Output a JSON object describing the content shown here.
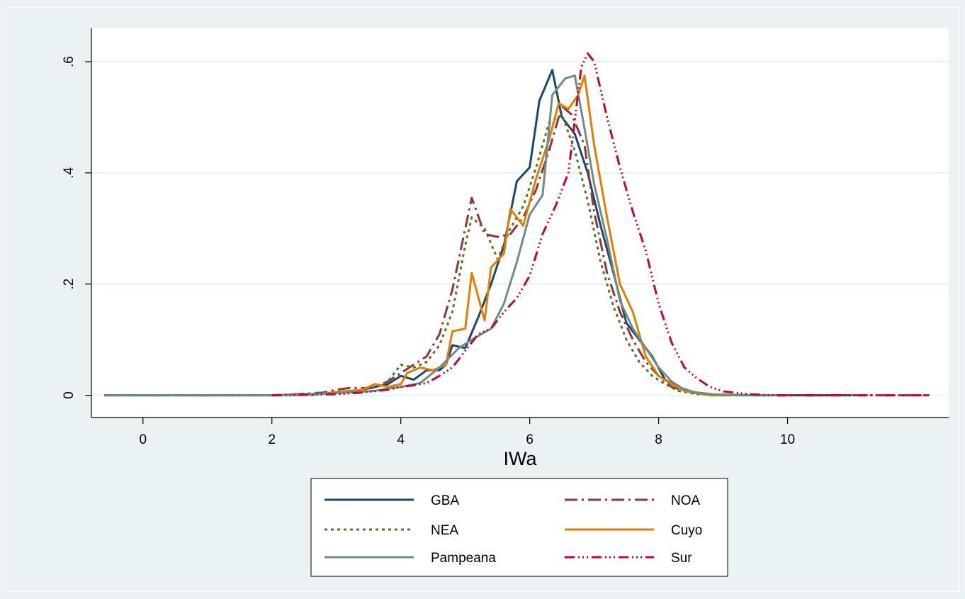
{
  "chart_data": {
    "type": "line",
    "title": "",
    "xlabel": "IWa",
    "ylabel": "",
    "xlim": [
      -0.8,
      12.5
    ],
    "ylim": [
      -0.04,
      0.66
    ],
    "x_ticks": [
      0,
      2,
      4,
      6,
      8,
      10
    ],
    "x_tick_labels": [
      "0",
      "2",
      "4",
      "6",
      "8",
      "10"
    ],
    "y_ticks": [
      0,
      0.2,
      0.4,
      0.6
    ],
    "y_tick_labels": [
      "0",
      ".2",
      ".4",
      ".6"
    ],
    "grid": "horizontal",
    "legend": "bottom",
    "series": [
      {
        "name": "GBA",
        "color": "#1a476f",
        "dash": "none",
        "points": [
          [
            -0.6,
            0
          ],
          [
            2.0,
            0
          ],
          [
            2.6,
            0.002
          ],
          [
            3.0,
            0.005
          ],
          [
            3.4,
            0.01
          ],
          [
            3.8,
            0.02
          ],
          [
            4.0,
            0.035
          ],
          [
            4.2,
            0.028
          ],
          [
            4.4,
            0.045
          ],
          [
            4.6,
            0.045
          ],
          [
            4.7,
            0.055
          ],
          [
            4.8,
            0.09
          ],
          [
            5.0,
            0.085
          ],
          [
            5.2,
            0.14
          ],
          [
            5.4,
            0.2
          ],
          [
            5.6,
            0.27
          ],
          [
            5.8,
            0.385
          ],
          [
            6.0,
            0.41
          ],
          [
            6.15,
            0.53
          ],
          [
            6.35,
            0.585
          ],
          [
            6.5,
            0.5
          ],
          [
            6.7,
            0.47
          ],
          [
            6.9,
            0.4
          ],
          [
            7.1,
            0.305
          ],
          [
            7.3,
            0.22
          ],
          [
            7.5,
            0.13
          ],
          [
            7.7,
            0.1
          ],
          [
            7.9,
            0.07
          ],
          [
            8.1,
            0.028
          ],
          [
            8.3,
            0.015
          ],
          [
            8.5,
            0.007
          ],
          [
            8.7,
            0.002
          ],
          [
            9.0,
            0.001
          ],
          [
            9.5,
            0
          ],
          [
            11.0,
            0
          ]
        ]
      },
      {
        "name": "NOA",
        "color": "#90353b",
        "dash": "18 6 3 6",
        "points": [
          [
            -0.6,
            0
          ],
          [
            2.0,
            0
          ],
          [
            2.4,
            0.002
          ],
          [
            2.8,
            0.005
          ],
          [
            3.0,
            0.01
          ],
          [
            3.2,
            0.013
          ],
          [
            3.6,
            0.013
          ],
          [
            3.8,
            0.025
          ],
          [
            4.0,
            0.04
          ],
          [
            4.2,
            0.055
          ],
          [
            4.4,
            0.07
          ],
          [
            4.6,
            0.11
          ],
          [
            4.8,
            0.19
          ],
          [
            5.0,
            0.3
          ],
          [
            5.1,
            0.355
          ],
          [
            5.3,
            0.29
          ],
          [
            5.5,
            0.285
          ],
          [
            5.7,
            0.29
          ],
          [
            5.9,
            0.32
          ],
          [
            6.1,
            0.37
          ],
          [
            6.3,
            0.44
          ],
          [
            6.5,
            0.52
          ],
          [
            6.65,
            0.505
          ],
          [
            6.85,
            0.45
          ],
          [
            7.0,
            0.33
          ],
          [
            7.2,
            0.22
          ],
          [
            7.4,
            0.15
          ],
          [
            7.6,
            0.1
          ],
          [
            7.8,
            0.06
          ],
          [
            8.0,
            0.035
          ],
          [
            8.2,
            0.015
          ],
          [
            8.5,
            0.005
          ],
          [
            8.8,
            0.001
          ],
          [
            9.0,
            0
          ],
          [
            12.2,
            0
          ]
        ]
      },
      {
        "name": "NEA",
        "color": "#55752f",
        "dash": "4 5",
        "points": [
          [
            -0.6,
            0
          ],
          [
            2.0,
            0
          ],
          [
            2.4,
            0.001
          ],
          [
            2.8,
            0.003
          ],
          [
            3.0,
            0.005
          ],
          [
            3.4,
            0.01
          ],
          [
            3.6,
            0.015
          ],
          [
            3.8,
            0.025
          ],
          [
            4.0,
            0.055
          ],
          [
            4.2,
            0.05
          ],
          [
            4.4,
            0.06
          ],
          [
            4.6,
            0.09
          ],
          [
            4.8,
            0.15
          ],
          [
            5.0,
            0.27
          ],
          [
            5.1,
            0.32
          ],
          [
            5.3,
            0.3
          ],
          [
            5.5,
            0.245
          ],
          [
            5.7,
            0.3
          ],
          [
            5.9,
            0.34
          ],
          [
            6.1,
            0.41
          ],
          [
            6.3,
            0.49
          ],
          [
            6.5,
            0.505
          ],
          [
            6.7,
            0.44
          ],
          [
            6.9,
            0.35
          ],
          [
            7.1,
            0.24
          ],
          [
            7.3,
            0.16
          ],
          [
            7.5,
            0.1
          ],
          [
            7.7,
            0.06
          ],
          [
            7.9,
            0.035
          ],
          [
            8.1,
            0.02
          ],
          [
            8.3,
            0.008
          ],
          [
            8.6,
            0.002
          ],
          [
            9.0,
            0
          ],
          [
            9.6,
            0
          ]
        ]
      },
      {
        "name": "Cuyo",
        "color": "#e37e00",
        "dash": "none",
        "points": [
          [
            2.6,
            0
          ],
          [
            3.0,
            0.006
          ],
          [
            3.4,
            0.01
          ],
          [
            3.6,
            0.02
          ],
          [
            3.8,
            0.015
          ],
          [
            4.0,
            0.02
          ],
          [
            4.1,
            0.04
          ],
          [
            4.3,
            0.05
          ],
          [
            4.5,
            0.045
          ],
          [
            4.7,
            0.055
          ],
          [
            4.8,
            0.115
          ],
          [
            5.0,
            0.12
          ],
          [
            5.1,
            0.22
          ],
          [
            5.3,
            0.135
          ],
          [
            5.4,
            0.23
          ],
          [
            5.6,
            0.255
          ],
          [
            5.7,
            0.335
          ],
          [
            5.9,
            0.305
          ],
          [
            6.1,
            0.39
          ],
          [
            6.3,
            0.46
          ],
          [
            6.45,
            0.525
          ],
          [
            6.6,
            0.515
          ],
          [
            6.75,
            0.54
          ],
          [
            6.85,
            0.575
          ],
          [
            7.0,
            0.45
          ],
          [
            7.2,
            0.32
          ],
          [
            7.4,
            0.2
          ],
          [
            7.6,
            0.15
          ],
          [
            7.8,
            0.07
          ],
          [
            8.0,
            0.035
          ],
          [
            8.2,
            0.02
          ],
          [
            8.4,
            0.008
          ],
          [
            8.6,
            0.004
          ],
          [
            8.8,
            0
          ],
          [
            9.1,
            0
          ]
        ]
      },
      {
        "name": "Pampeana",
        "color": "#6e8e84",
        "dash": "none",
        "points": [
          [
            -0.6,
            0
          ],
          [
            2.0,
            0
          ],
          [
            2.4,
            0
          ],
          [
            2.8,
            0.003
          ],
          [
            3.2,
            0.005
          ],
          [
            3.6,
            0.008
          ],
          [
            3.8,
            0.012
          ],
          [
            4.0,
            0.015
          ],
          [
            4.3,
            0.022
          ],
          [
            4.6,
            0.05
          ],
          [
            4.9,
            0.085
          ],
          [
            5.1,
            0.1
          ],
          [
            5.4,
            0.12
          ],
          [
            5.6,
            0.165
          ],
          [
            5.8,
            0.24
          ],
          [
            6.0,
            0.325
          ],
          [
            6.2,
            0.36
          ],
          [
            6.35,
            0.54
          ],
          [
            6.55,
            0.57
          ],
          [
            6.7,
            0.575
          ],
          [
            6.85,
            0.48
          ],
          [
            7.0,
            0.38
          ],
          [
            7.2,
            0.28
          ],
          [
            7.4,
            0.17
          ],
          [
            7.6,
            0.12
          ],
          [
            7.8,
            0.085
          ],
          [
            8.0,
            0.05
          ],
          [
            8.2,
            0.025
          ],
          [
            8.4,
            0.01
          ],
          [
            8.6,
            0.005
          ],
          [
            8.9,
            0.001
          ],
          [
            9.2,
            0
          ],
          [
            10.0,
            0
          ]
        ]
      },
      {
        "name": "Sur",
        "color": "#c10534",
        "dash": "14 5 2 4 2 4 2 5",
        "points": [
          [
            2.0,
            0
          ],
          [
            3.0,
            0.002
          ],
          [
            3.4,
            0.005
          ],
          [
            3.8,
            0.01
          ],
          [
            4.0,
            0.015
          ],
          [
            4.2,
            0.018
          ],
          [
            4.4,
            0.022
          ],
          [
            4.6,
            0.035
          ],
          [
            4.8,
            0.05
          ],
          [
            5.0,
            0.08
          ],
          [
            5.2,
            0.11
          ],
          [
            5.4,
            0.12
          ],
          [
            5.6,
            0.15
          ],
          [
            5.8,
            0.175
          ],
          [
            6.0,
            0.215
          ],
          [
            6.2,
            0.29
          ],
          [
            6.4,
            0.34
          ],
          [
            6.6,
            0.4
          ],
          [
            6.8,
            0.59
          ],
          [
            6.9,
            0.615
          ],
          [
            7.0,
            0.6
          ],
          [
            7.2,
            0.5
          ],
          [
            7.4,
            0.41
          ],
          [
            7.6,
            0.33
          ],
          [
            7.8,
            0.26
          ],
          [
            8.0,
            0.165
          ],
          [
            8.2,
            0.095
          ],
          [
            8.4,
            0.05
          ],
          [
            8.6,
            0.03
          ],
          [
            8.8,
            0.015
          ],
          [
            9.0,
            0.007
          ],
          [
            9.4,
            0.002
          ],
          [
            9.8,
            0
          ],
          [
            12.2,
            0
          ]
        ]
      }
    ]
  }
}
